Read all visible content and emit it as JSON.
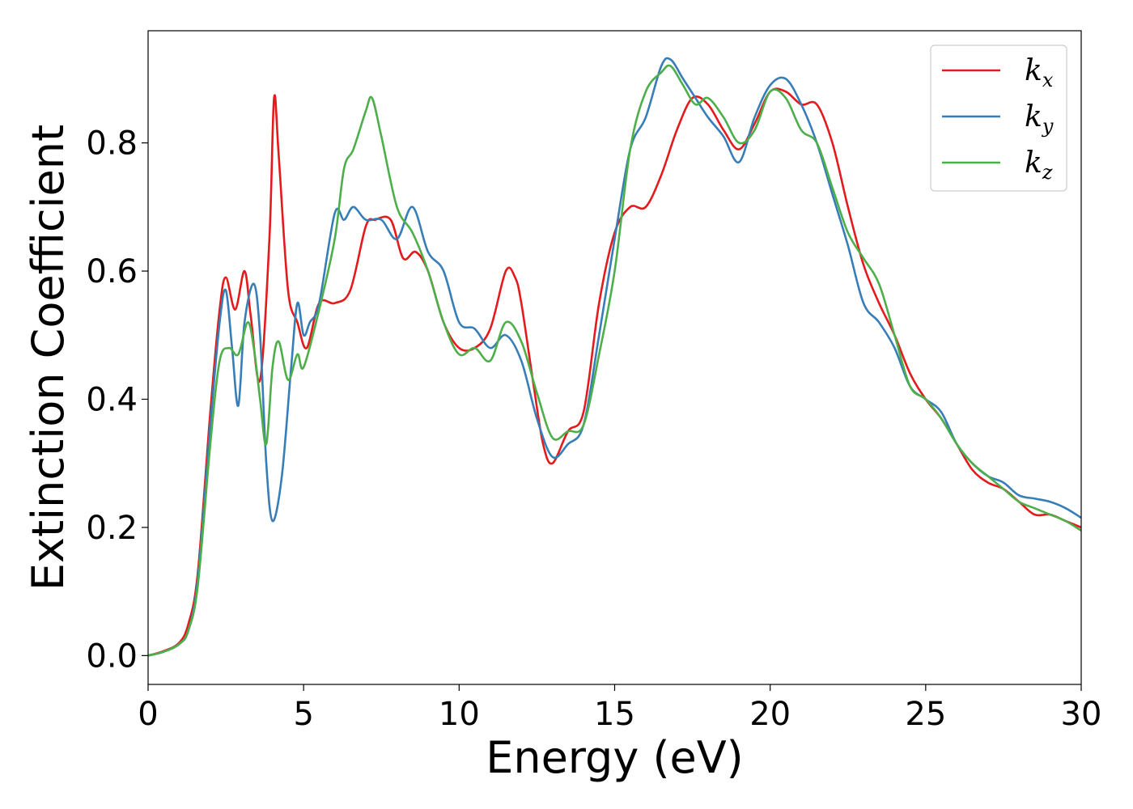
{
  "chart_data": {
    "type": "line",
    "title": "",
    "xlabel": "Energy (eV)",
    "ylabel": "Extinction Coefficient",
    "xlim": [
      0,
      30
    ],
    "ylim": [
      -0.045,
      0.975
    ],
    "xticks": [
      0,
      5,
      10,
      15,
      20,
      25,
      30
    ],
    "xtick_labels": [
      "0",
      "5",
      "10",
      "15",
      "20",
      "25",
      "30"
    ],
    "yticks": [
      0.0,
      0.2,
      0.4,
      0.6,
      0.8
    ],
    "ytick_labels": [
      "0.0",
      "0.2",
      "0.4",
      "0.6",
      "0.8"
    ],
    "grid": false,
    "legend_position": "top-right",
    "series": [
      {
        "name": "kx",
        "legend_base": "k",
        "legend_sub": "x",
        "color": "#e41a1c",
        "x": [
          0,
          0.5,
          1.0,
          1.3,
          1.6,
          2.0,
          2.3,
          2.5,
          2.8,
          3.1,
          3.3,
          3.6,
          3.9,
          4.05,
          4.2,
          4.5,
          4.8,
          5.1,
          5.5,
          6.0,
          6.5,
          7.0,
          7.3,
          7.8,
          8.2,
          8.6,
          9.0,
          9.5,
          10.0,
          10.5,
          11.0,
          11.5,
          11.8,
          12.0,
          12.4,
          12.7,
          13.0,
          13.5,
          14.0,
          14.5,
          15.0,
          15.5,
          16.0,
          16.5,
          17.0,
          17.5,
          18.0,
          18.5,
          19.0,
          19.5,
          20.0,
          20.5,
          21.0,
          21.5,
          22.0,
          22.5,
          23.0,
          23.5,
          24.0,
          24.5,
          25.0,
          25.5,
          26.0,
          26.5,
          27.0,
          27.5,
          28.0,
          28.5,
          29.0,
          29.5,
          30.0
        ],
        "y": [
          0.0,
          0.007,
          0.02,
          0.05,
          0.13,
          0.38,
          0.54,
          0.59,
          0.54,
          0.6,
          0.53,
          0.43,
          0.65,
          0.87,
          0.78,
          0.57,
          0.52,
          0.48,
          0.55,
          0.55,
          0.57,
          0.67,
          0.68,
          0.68,
          0.62,
          0.63,
          0.6,
          0.52,
          0.48,
          0.48,
          0.51,
          0.6,
          0.59,
          0.55,
          0.42,
          0.33,
          0.3,
          0.35,
          0.38,
          0.55,
          0.66,
          0.7,
          0.7,
          0.75,
          0.82,
          0.87,
          0.86,
          0.82,
          0.79,
          0.83,
          0.88,
          0.88,
          0.86,
          0.86,
          0.8,
          0.7,
          0.61,
          0.55,
          0.5,
          0.44,
          0.4,
          0.37,
          0.33,
          0.29,
          0.27,
          0.26,
          0.24,
          0.22,
          0.22,
          0.21,
          0.2
        ]
      },
      {
        "name": "ky",
        "legend_base": "k",
        "legend_sub": "y",
        "color": "#377eb8",
        "x": [
          0,
          0.5,
          1.0,
          1.3,
          1.6,
          2.0,
          2.3,
          2.5,
          2.7,
          2.9,
          3.1,
          3.4,
          3.6,
          3.8,
          4.0,
          4.3,
          4.6,
          4.8,
          5.0,
          5.2,
          5.5,
          6.0,
          6.3,
          6.6,
          7.0,
          7.5,
          8.0,
          8.5,
          9.0,
          9.5,
          10.0,
          10.5,
          11.0,
          11.5,
          12.0,
          12.5,
          13.0,
          13.5,
          14.0,
          14.5,
          15.0,
          15.5,
          16.0,
          16.5,
          16.8,
          17.2,
          17.6,
          18.0,
          18.5,
          19.0,
          19.5,
          20.0,
          20.5,
          21.0,
          21.5,
          22.0,
          22.5,
          23.0,
          23.5,
          24.0,
          24.5,
          25.0,
          25.5,
          26.0,
          26.5,
          27.0,
          27.5,
          28.0,
          28.5,
          29.0,
          29.5,
          30.0
        ],
        "y": [
          0.0,
          0.006,
          0.018,
          0.04,
          0.12,
          0.36,
          0.52,
          0.57,
          0.48,
          0.39,
          0.52,
          0.58,
          0.5,
          0.3,
          0.21,
          0.28,
          0.45,
          0.55,
          0.5,
          0.52,
          0.55,
          0.69,
          0.68,
          0.7,
          0.68,
          0.68,
          0.65,
          0.7,
          0.63,
          0.6,
          0.52,
          0.51,
          0.48,
          0.5,
          0.46,
          0.37,
          0.31,
          0.33,
          0.36,
          0.5,
          0.65,
          0.79,
          0.84,
          0.92,
          0.93,
          0.9,
          0.87,
          0.84,
          0.81,
          0.77,
          0.84,
          0.89,
          0.9,
          0.86,
          0.8,
          0.72,
          0.64,
          0.55,
          0.52,
          0.48,
          0.42,
          0.4,
          0.38,
          0.33,
          0.3,
          0.28,
          0.27,
          0.25,
          0.245,
          0.24,
          0.23,
          0.215
        ]
      },
      {
        "name": "kz",
        "legend_base": "k",
        "legend_sub": "z",
        "color": "#4daf4a",
        "x": [
          0,
          0.5,
          1.0,
          1.3,
          1.6,
          2.0,
          2.3,
          2.6,
          2.9,
          3.2,
          3.4,
          3.6,
          3.8,
          4.0,
          4.2,
          4.5,
          4.8,
          5.0,
          5.5,
          6.0,
          6.3,
          6.6,
          7.0,
          7.2,
          7.5,
          8.0,
          8.5,
          9.0,
          9.5,
          10.0,
          10.5,
          11.0,
          11.5,
          12.0,
          12.5,
          13.0,
          13.5,
          14.0,
          14.5,
          15.0,
          15.5,
          16.0,
          16.5,
          16.8,
          17.2,
          17.6,
          18.0,
          18.5,
          19.0,
          19.5,
          20.0,
          20.5,
          21.0,
          21.5,
          22.0,
          22.5,
          23.0,
          23.5,
          24.0,
          24.5,
          25.0,
          25.5,
          26.0,
          26.5,
          27.0,
          27.5,
          28.0,
          28.5,
          29.0,
          29.5,
          30.0
        ],
        "y": [
          0.0,
          0.006,
          0.018,
          0.04,
          0.11,
          0.33,
          0.46,
          0.48,
          0.47,
          0.52,
          0.48,
          0.4,
          0.33,
          0.45,
          0.49,
          0.43,
          0.47,
          0.45,
          0.54,
          0.65,
          0.76,
          0.79,
          0.85,
          0.87,
          0.81,
          0.7,
          0.66,
          0.6,
          0.52,
          0.47,
          0.48,
          0.46,
          0.52,
          0.49,
          0.41,
          0.34,
          0.35,
          0.36,
          0.47,
          0.6,
          0.79,
          0.88,
          0.91,
          0.92,
          0.89,
          0.86,
          0.87,
          0.84,
          0.8,
          0.82,
          0.88,
          0.87,
          0.82,
          0.8,
          0.73,
          0.66,
          0.62,
          0.58,
          0.5,
          0.42,
          0.4,
          0.37,
          0.33,
          0.3,
          0.28,
          0.26,
          0.24,
          0.23,
          0.22,
          0.21,
          0.195
        ]
      }
    ]
  }
}
